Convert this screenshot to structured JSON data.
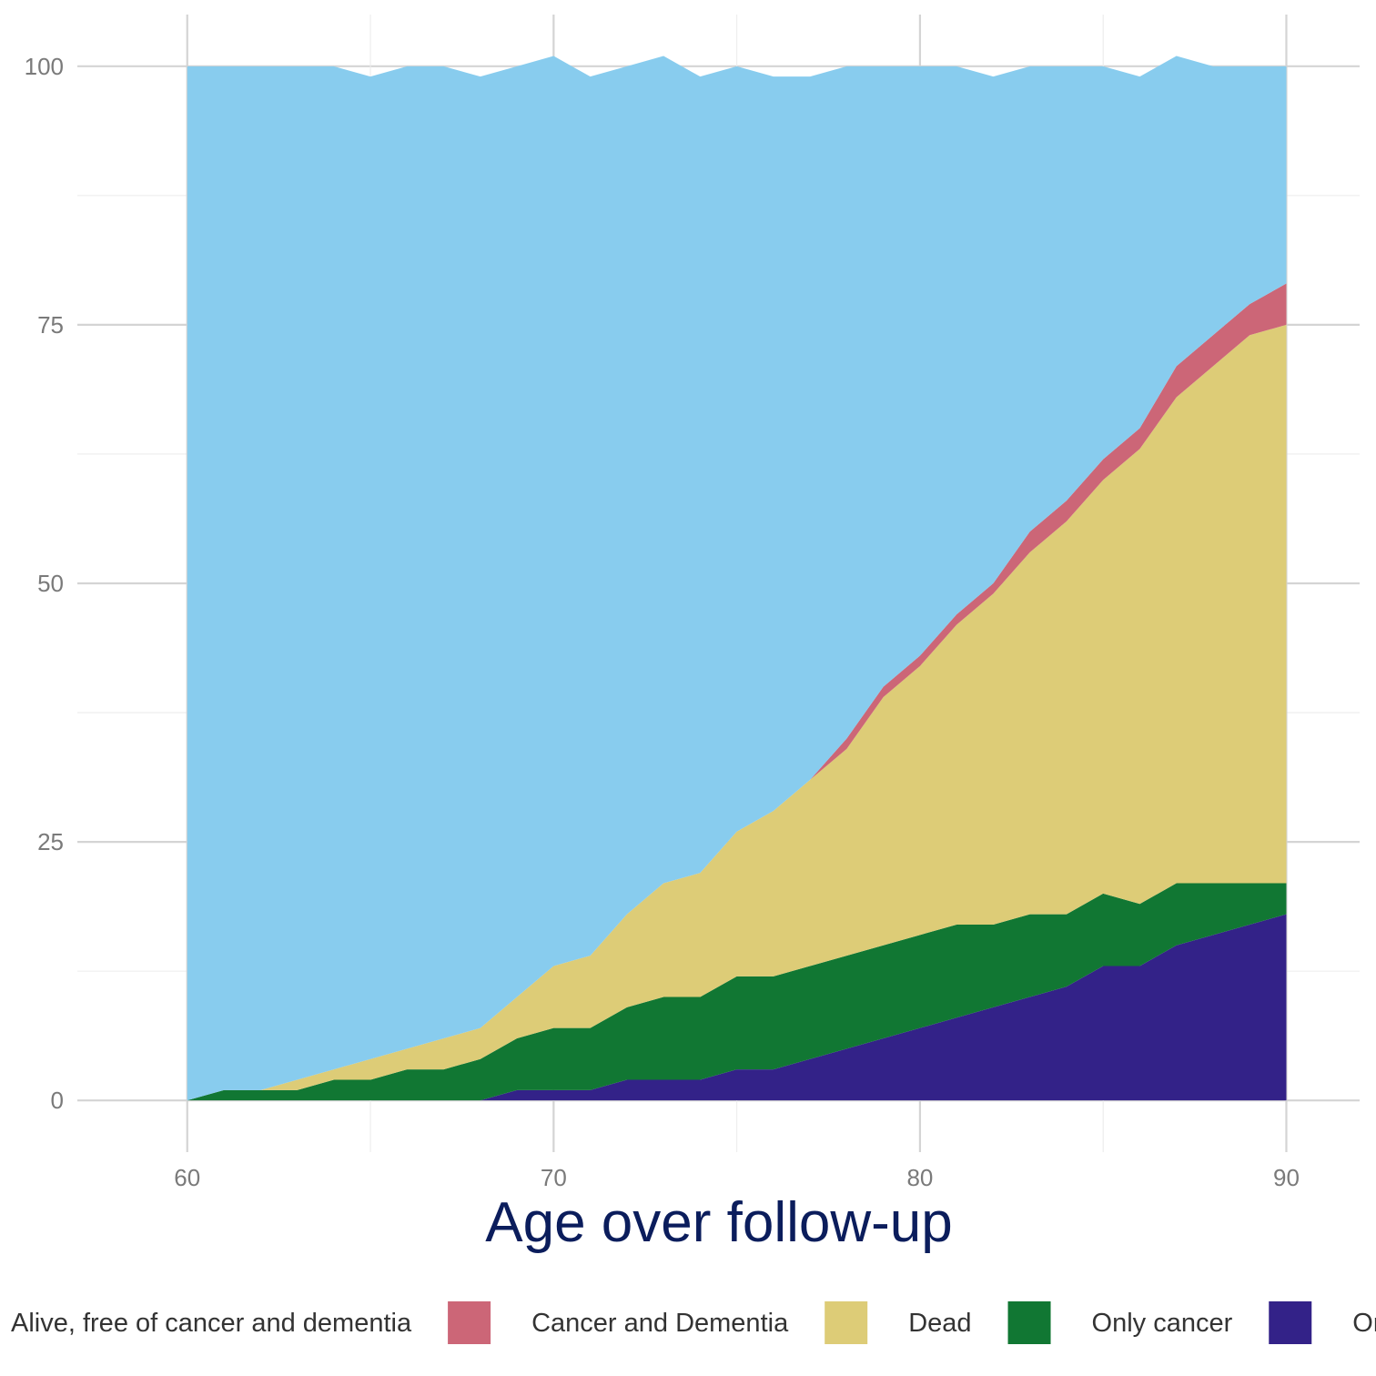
{
  "chart_data": {
    "type": "area",
    "stacked": true,
    "title": "",
    "xlabel": "Age over follow-up",
    "ylabel": "",
    "xlim": [
      57,
      92
    ],
    "ylim": [
      -5,
      105
    ],
    "x_ticks": [
      60,
      70,
      80,
      90
    ],
    "y_ticks": [
      0,
      25,
      50,
      75,
      100
    ],
    "grid": true,
    "legend_position": "bottom",
    "legend": [
      "Alive, free of cancer and dementia",
      "Cancer and Dementia",
      "Dead",
      "Only cancer",
      "Only dementia"
    ],
    "colors": {
      "Alive, free of cancer and dementia": "#88ccee",
      "Cancer and Dementia": "#cc6677",
      "Dead": "#ddcc77",
      "Only cancer": "#117733",
      "Only dementia": "#332288"
    },
    "x": [
      60,
      61,
      62,
      63,
      64,
      65,
      66,
      67,
      68,
      69,
      70,
      71,
      72,
      73,
      74,
      75,
      76,
      77,
      78,
      79,
      80,
      81,
      82,
      83,
      84,
      85,
      86,
      87,
      88,
      89,
      90
    ],
    "series": [
      {
        "name": "Only dementia",
        "values": [
          0,
          0,
          0,
          0,
          0,
          0,
          0,
          0,
          0,
          1,
          1,
          1,
          2,
          2,
          2,
          3,
          3,
          4,
          5,
          6,
          7,
          8,
          9,
          10,
          11,
          13,
          13,
          15,
          16,
          17,
          18
        ]
      },
      {
        "name": "Only cancer",
        "values": [
          0,
          1,
          1,
          1,
          2,
          2,
          3,
          3,
          4,
          5,
          6,
          6,
          7,
          8,
          8,
          9,
          9,
          9,
          9,
          9,
          9,
          9,
          8,
          8,
          7,
          7,
          6,
          6,
          5,
          4,
          3
        ]
      },
      {
        "name": "Dead",
        "values": [
          0,
          0,
          0,
          1,
          1,
          2,
          2,
          3,
          3,
          4,
          6,
          7,
          9,
          11,
          12,
          14,
          16,
          18,
          20,
          24,
          26,
          29,
          32,
          35,
          38,
          40,
          44,
          47,
          50,
          53,
          54
        ]
      },
      {
        "name": "Cancer and Dementia",
        "values": [
          0,
          0,
          0,
          0,
          0,
          0,
          0,
          0,
          0,
          0,
          0,
          0,
          0,
          0,
          0,
          0,
          0,
          0,
          1,
          1,
          1,
          1,
          1,
          2,
          2,
          2,
          2,
          3,
          3,
          3,
          4
        ]
      },
      {
        "name": "Alive, free of cancer and dementia",
        "values": [
          100,
          99,
          99,
          98,
          97,
          95,
          95,
          94,
          92,
          90,
          88,
          85,
          82,
          80,
          77,
          74,
          71,
          68,
          65,
          60,
          57,
          53,
          49,
          45,
          42,
          38,
          34,
          30,
          26,
          23,
          21
        ]
      }
    ]
  }
}
